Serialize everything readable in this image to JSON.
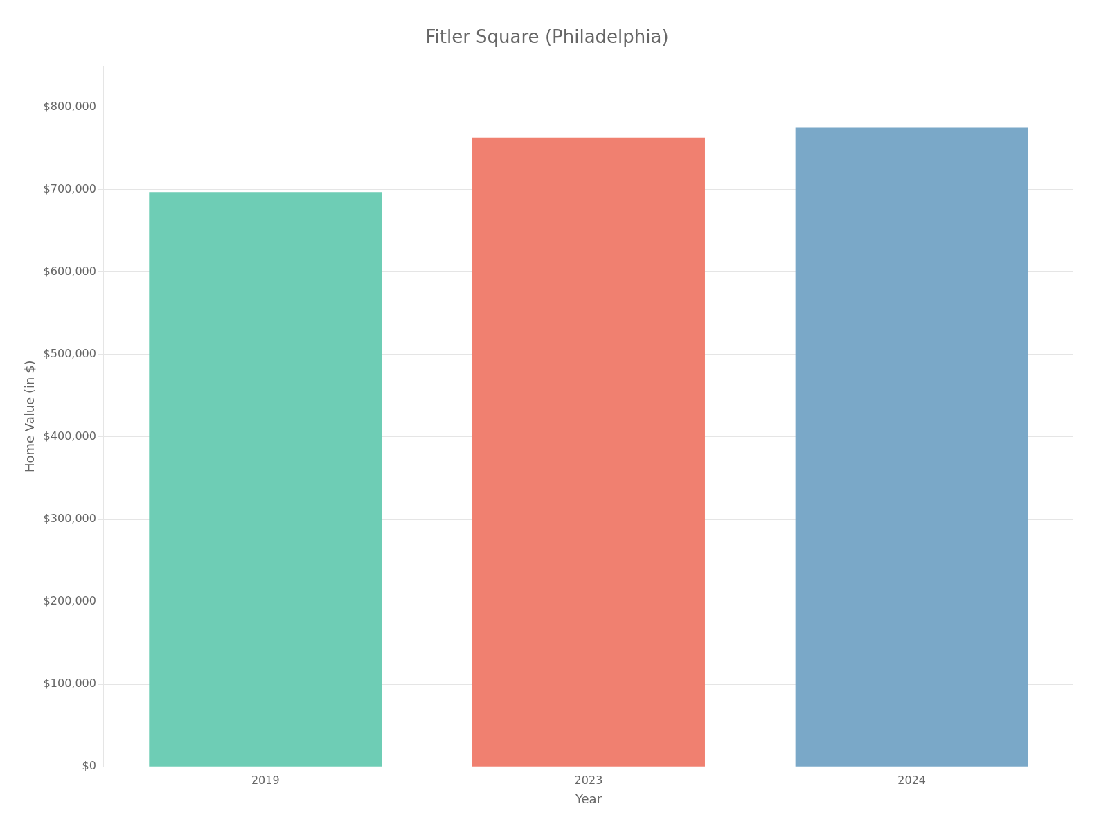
{
  "chart_data": {
    "type": "bar",
    "title": "Fitler Square (Philadelphia)",
    "categories": [
      "2019",
      "2023",
      "2024"
    ],
    "values": [
      697000,
      763000,
      775000
    ],
    "colors": [
      "#6ECDB5",
      "#F08070",
      "#7AA8C8"
    ],
    "xlabel": "Year",
    "ylabel": "Home Value (in $)",
    "ylim": [
      0,
      850000
    ],
    "yticks": [
      {
        "value": 0,
        "label": "$0"
      },
      {
        "value": 100000,
        "label": "$100,000"
      },
      {
        "value": 200000,
        "label": "$200,000"
      },
      {
        "value": 300000,
        "label": "$300,000"
      },
      {
        "value": 400000,
        "label": "$400,000"
      },
      {
        "value": 500000,
        "label": "$500,000"
      },
      {
        "value": 600000,
        "label": "$600,000"
      },
      {
        "value": 700000,
        "label": "$700,000"
      },
      {
        "value": 800000,
        "label": "$800,000"
      }
    ],
    "grid": true
  }
}
